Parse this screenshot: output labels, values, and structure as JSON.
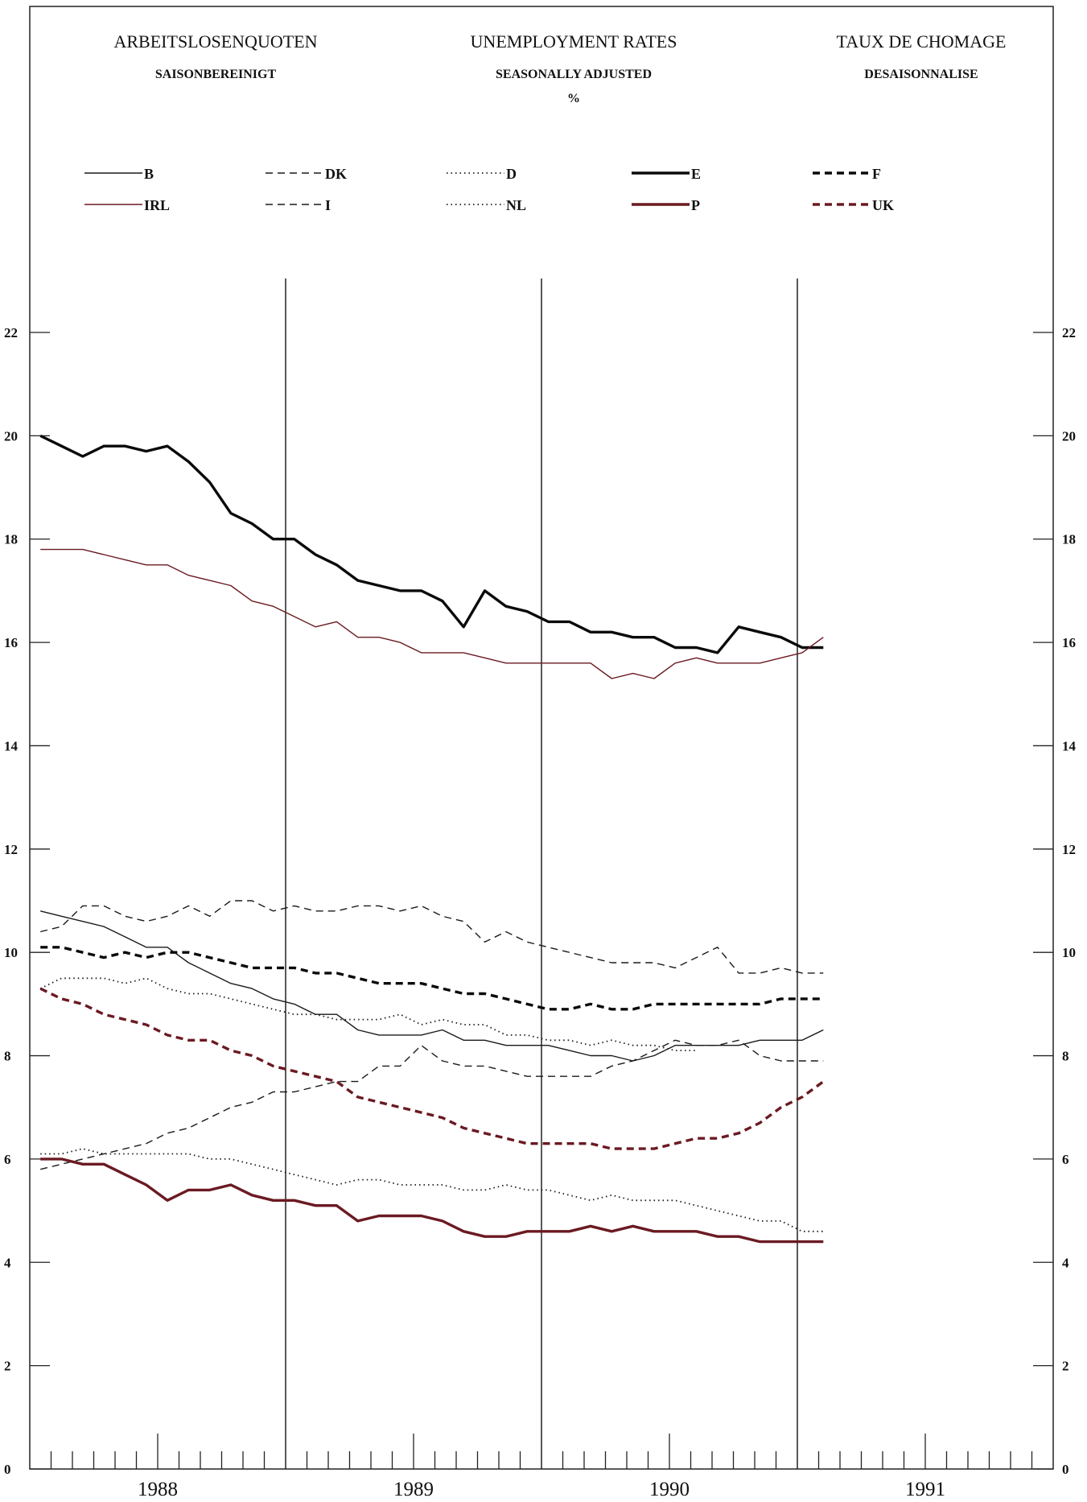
{
  "header": {
    "title_de": "ARBEITSLOSENQUOTEN",
    "title_en": "UNEMPLOYMENT RATES",
    "title_fr": "TAUX DE CHOMAGE",
    "sub_de": "SAISONBEREINIGT",
    "sub_en": "SEASONALLY ADJUSTED",
    "sub_fr": "DESAISONNALISE",
    "unit": "%"
  },
  "chart_data": {
    "type": "line",
    "ylim": [
      0,
      22
    ],
    "yticks": [
      "0",
      "2",
      "4",
      "6",
      "8",
      "10",
      "12",
      "14",
      "16",
      "18",
      "20",
      "22"
    ],
    "years": [
      "1988",
      "1989",
      "1990",
      "1991"
    ],
    "x_unit": "monthly, Jan 1988 - Apr 1991",
    "grid": "vertical lines at year boundaries",
    "legend_placement": "top",
    "series": [
      {
        "name": "B",
        "style": "thin-solid",
        "color": "#1a1a1a",
        "values": [
          10.8,
          10.7,
          10.6,
          10.5,
          10.3,
          10.1,
          10.1,
          9.8,
          9.6,
          9.4,
          9.3,
          9.1,
          9.0,
          8.8,
          8.8,
          8.5,
          8.4,
          8.4,
          8.4,
          8.5,
          8.3,
          8.3,
          8.2,
          8.2,
          8.2,
          8.1,
          8.0,
          8.0,
          7.9,
          8.0,
          8.2,
          8.2,
          8.2,
          8.2,
          8.3,
          8.3,
          8.3,
          8.5
        ]
      },
      {
        "name": "DK",
        "style": "thin-dashed",
        "color": "#1a1a1a",
        "values": [
          10.4,
          10.5,
          10.9,
          10.9,
          10.7,
          10.6,
          10.7,
          10.9,
          10.7,
          11.0,
          11.0,
          10.8,
          10.9,
          10.8,
          10.8,
          10.9,
          10.9,
          10.8,
          10.9,
          10.7,
          10.6,
          10.2,
          10.4,
          10.2,
          10.1,
          10.0,
          9.9,
          9.8,
          9.8,
          9.8,
          9.7,
          9.9,
          10.1,
          9.6,
          9.6,
          9.7,
          9.6,
          9.6
        ]
      },
      {
        "name": "D",
        "style": "thin-dotted",
        "color": "#1a1a1a",
        "values": [
          9.3,
          9.5,
          9.5,
          9.5,
          9.4,
          9.5,
          9.3,
          9.2,
          9.2,
          9.1,
          9.0,
          8.9,
          8.8,
          8.8,
          8.7,
          8.7,
          8.7,
          8.8,
          8.6,
          8.7,
          8.6,
          8.6,
          8.4,
          8.4,
          8.3,
          8.3,
          8.2,
          8.3,
          8.2,
          8.2,
          8.1,
          8.1,
          null,
          null,
          null,
          null,
          null,
          null
        ]
      },
      {
        "name": "E",
        "style": "thick-solid",
        "color": "#0a0a0a",
        "values": [
          20.0,
          19.8,
          19.6,
          19.8,
          19.8,
          19.7,
          19.8,
          19.5,
          19.1,
          18.5,
          18.3,
          18.0,
          18.0,
          17.7,
          17.5,
          17.2,
          17.1,
          17.0,
          17.0,
          16.8,
          16.3,
          17.0,
          16.7,
          16.6,
          16.4,
          16.4,
          16.2,
          16.2,
          16.1,
          16.1,
          15.9,
          15.9,
          15.8,
          16.3,
          16.2,
          16.1,
          15.9,
          15.9
        ]
      },
      {
        "name": "F",
        "style": "thick-dashed",
        "color": "#0a0a0a",
        "values": [
          10.1,
          10.1,
          10.0,
          9.9,
          10.0,
          9.9,
          10.0,
          10.0,
          9.9,
          9.8,
          9.7,
          9.7,
          9.7,
          9.6,
          9.6,
          9.5,
          9.4,
          9.4,
          9.4,
          9.3,
          9.2,
          9.2,
          9.1,
          9.0,
          8.9,
          8.9,
          9.0,
          8.9,
          8.9,
          9.0,
          9.0,
          9.0,
          9.0,
          9.0,
          9.0,
          9.1,
          9.1,
          9.1
        ]
      },
      {
        "name": "IRL",
        "style": "thin-solid",
        "color": "#6b1a22",
        "values": [
          17.8,
          17.8,
          17.8,
          17.7,
          17.6,
          17.5,
          17.5,
          17.3,
          17.2,
          17.1,
          16.8,
          16.7,
          16.5,
          16.3,
          16.4,
          16.1,
          16.1,
          16.0,
          15.8,
          15.8,
          15.8,
          15.7,
          15.6,
          15.6,
          15.6,
          15.6,
          15.6,
          15.3,
          15.4,
          15.3,
          15.6,
          15.7,
          15.6,
          15.6,
          15.6,
          15.7,
          15.8,
          16.1
        ]
      },
      {
        "name": "I",
        "style": "thin-dashed",
        "color": "#1a1a1a",
        "values": [
          5.8,
          5.9,
          6.0,
          6.1,
          6.2,
          6.3,
          6.5,
          6.6,
          6.8,
          7.0,
          7.1,
          7.3,
          7.3,
          7.4,
          7.5,
          7.5,
          7.8,
          7.8,
          8.2,
          7.9,
          7.8,
          7.8,
          7.7,
          7.6,
          7.6,
          7.6,
          7.6,
          7.8,
          7.9,
          8.1,
          8.3,
          8.2,
          8.2,
          8.3,
          8.0,
          7.9,
          7.9,
          7.9
        ]
      },
      {
        "name": "NL",
        "style": "thin-dotted",
        "color": "#1a1a1a",
        "values": [
          6.1,
          6.1,
          6.2,
          6.1,
          6.1,
          6.1,
          6.1,
          6.1,
          6.0,
          6.0,
          5.9,
          5.8,
          5.7,
          5.6,
          5.5,
          5.6,
          5.6,
          5.5,
          5.5,
          5.5,
          5.4,
          5.4,
          5.5,
          5.4,
          5.4,
          5.3,
          5.2,
          5.3,
          5.2,
          5.2,
          5.2,
          5.1,
          5.0,
          4.9,
          4.8,
          4.8,
          4.6,
          4.6
        ]
      },
      {
        "name": "P",
        "style": "thick-solid",
        "color": "#6b1a22",
        "values": [
          6.0,
          6.0,
          5.9,
          5.9,
          5.7,
          5.5,
          5.2,
          5.4,
          5.4,
          5.5,
          5.3,
          5.2,
          5.2,
          5.1,
          5.1,
          4.8,
          4.9,
          4.9,
          4.9,
          4.8,
          4.6,
          4.5,
          4.5,
          4.6,
          4.6,
          4.6,
          4.7,
          4.6,
          4.7,
          4.6,
          4.6,
          4.6,
          4.5,
          4.5,
          4.4,
          4.4,
          4.4,
          4.4
        ]
      },
      {
        "name": "UK",
        "style": "thick-dashed",
        "color": "#6b1a22",
        "values": [
          9.3,
          9.1,
          9.0,
          8.8,
          8.7,
          8.6,
          8.4,
          8.3,
          8.3,
          8.1,
          8.0,
          7.8,
          7.7,
          7.6,
          7.5,
          7.2,
          7.1,
          7.0,
          6.9,
          6.8,
          6.6,
          6.5,
          6.4,
          6.3,
          6.3,
          6.3,
          6.3,
          6.2,
          6.2,
          6.2,
          6.3,
          6.4,
          6.4,
          6.5,
          6.7,
          7.0,
          7.2,
          7.5
        ]
      }
    ]
  }
}
